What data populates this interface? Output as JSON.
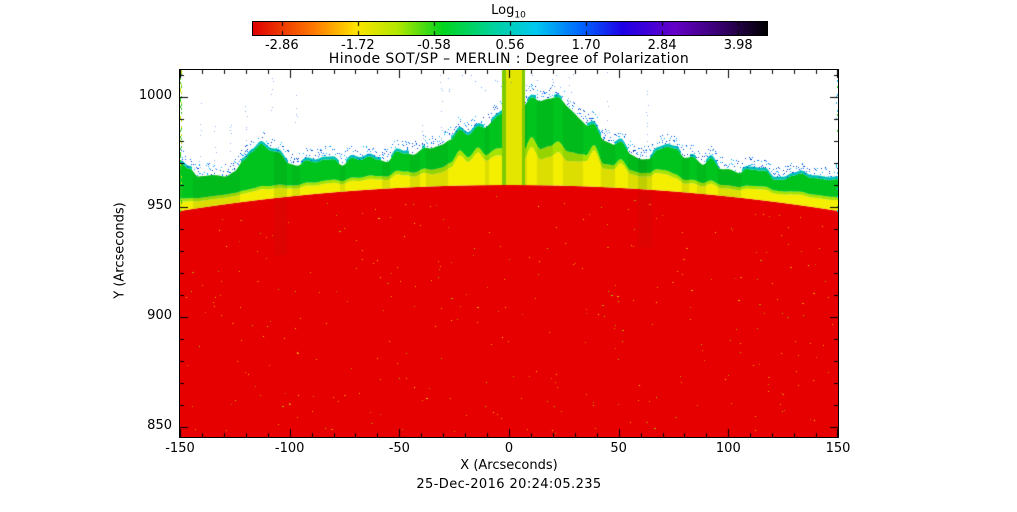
{
  "chart_data": {
    "type": "heatmap",
    "title": "Hinode SOT/SP – MERLIN : Degree of Polarization",
    "xlabel": "X (Arcseconds)",
    "ylabel": "Y (Arcseconds)",
    "caption": "25-Dec-2016 20:24:05.235",
    "xlim": [
      -150,
      150
    ],
    "ylim": [
      845.4,
      1012.3
    ],
    "x_ticks": {
      "values": [
        -150,
        -100,
        -50,
        0,
        50,
        100,
        150
      ],
      "labels": [
        "-150",
        "-100",
        "-50",
        "0",
        "50",
        "100",
        "150"
      ]
    },
    "y_ticks": {
      "values": [
        850,
        900,
        950,
        1000
      ],
      "labels": [
        "850",
        "900",
        "950",
        "1000"
      ]
    },
    "minor_tick_step_arcsec": 10,
    "grid": false,
    "colorbar": {
      "label": "Log",
      "label_sub": "10",
      "tick_labels": [
        "-2.86",
        "-1.72",
        "-0.58",
        "0.56",
        "1.70",
        "2.84",
        "3.98"
      ],
      "tick_values": [
        -2.86,
        -1.72,
        -0.58,
        0.56,
        1.7,
        2.84,
        3.98
      ],
      "stops": [
        [
          0.0,
          "#df0000"
        ],
        [
          0.12,
          "#ff7b00"
        ],
        [
          0.2,
          "#ffe400"
        ],
        [
          0.28,
          "#b4e800"
        ],
        [
          0.37,
          "#00d41e"
        ],
        [
          0.47,
          "#00d2a0"
        ],
        [
          0.55,
          "#00c8f0"
        ],
        [
          0.64,
          "#0064ff"
        ],
        [
          0.72,
          "#1e00e6"
        ],
        [
          0.82,
          "#6400c8"
        ],
        [
          0.9,
          "#3c0078"
        ],
        [
          1.0,
          "#000000"
        ]
      ]
    },
    "content": {
      "description": "Solar limb polarization map: saturated red disk (low log degree of polarization) below the limb near Y=960 arcsec, thin yellow then green transition band just above the curved limb, blue speckled fringe fading into white off-limb sky, and a bright yellow-green plume near X=0 extending to the top of the frame",
      "solar_radius_arcsec": 960,
      "disk_color": "#e60000",
      "band_colors": {
        "yellow": "#f4ee00",
        "yellow_green": "#a6e300",
        "green": "#00c41e",
        "cyan": "#00c0b4"
      },
      "speckle_colors": {
        "blue": [
          "#00aaff",
          "#0064ff",
          "#0032c8"
        ],
        "disk": [
          "#ffe600",
          "#ffc800",
          "#a0d800"
        ]
      },
      "plume": {
        "x_center": 2.2,
        "half_width": 5.8,
        "core_half_width": 3.5,
        "core_color": "#e4e600",
        "edge_color": "#7ecb00"
      },
      "streak_x_positions": [
        -141,
        -134,
        -127,
        -120,
        -108,
        -97,
        -39,
        -31,
        27,
        45,
        63
      ],
      "dark_columns_x": [
        -104,
        62
      ]
    }
  }
}
